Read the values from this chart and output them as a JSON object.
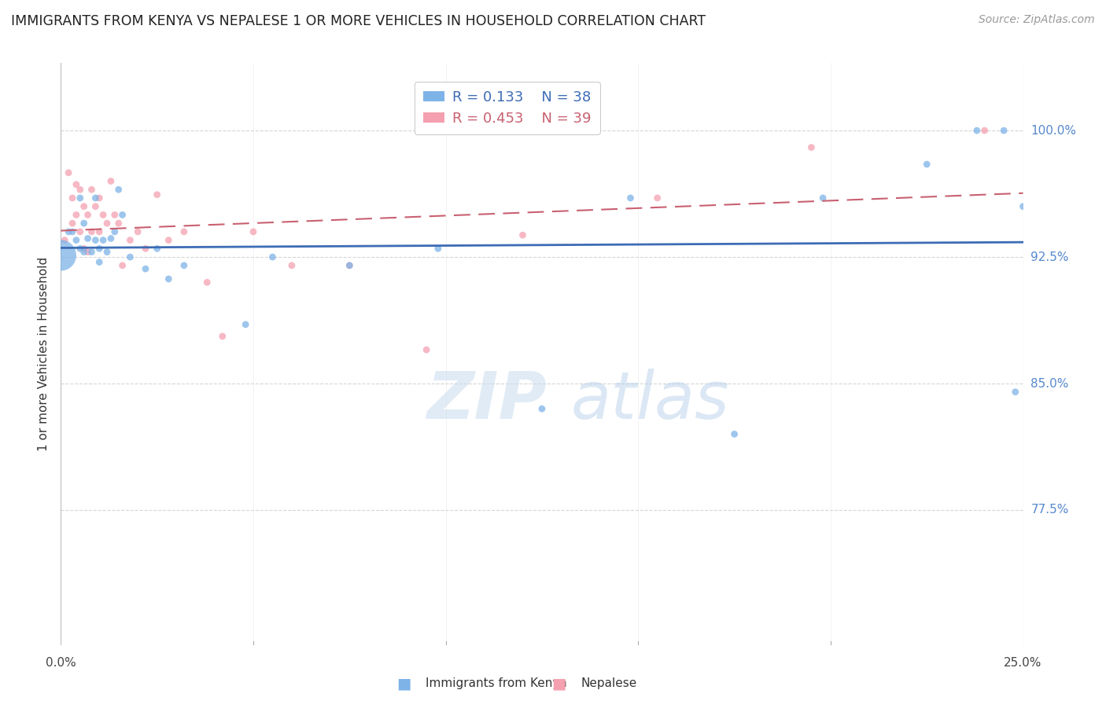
{
  "title": "IMMIGRANTS FROM KENYA VS NEPALESE 1 OR MORE VEHICLES IN HOUSEHOLD CORRELATION CHART",
  "source": "Source: ZipAtlas.com",
  "ylabel": "1 or more Vehicles in Household",
  "xlabel_kenya": "Immigrants from Kenya",
  "xlabel_nepalese": "Nepalese",
  "legend_kenya_R": "0.133",
  "legend_kenya_N": "38",
  "legend_nepal_R": "0.453",
  "legend_nepal_N": "39",
  "kenya_color": "#7EB3E8",
  "nepal_color": "#F4A0B0",
  "trendline_kenya_color": "#3D6CB5",
  "trendline_nepal_color": "#C96070",
  "watermark_zip": "ZIP",
  "watermark_atlas": "atlas",
  "background_color": "#FFFFFF",
  "grid_color": "#CCCCCC",
  "xlim": [
    0.0,
    0.25
  ],
  "ylim": [
    0.695,
    1.04
  ],
  "y_ticks": [
    0.775,
    0.85,
    0.925,
    1.0
  ],
  "y_tick_labels": [
    "77.5%",
    "85.0%",
    "92.5%",
    "100.0%"
  ],
  "x_tick_labels": [
    "0.0%",
    "25.0%"
  ],
  "x_tick_positions": [
    0.0,
    0.25
  ],
  "kenya_x": [
    0.0,
    0.002,
    0.003,
    0.004,
    0.005,
    0.005,
    0.006,
    0.006,
    0.007,
    0.008,
    0.009,
    0.009,
    0.01,
    0.01,
    0.011,
    0.012,
    0.013,
    0.014,
    0.015,
    0.016,
    0.018,
    0.022,
    0.025,
    0.028,
    0.032,
    0.048,
    0.055,
    0.075,
    0.098,
    0.125,
    0.148,
    0.175,
    0.198,
    0.225,
    0.238,
    0.245,
    0.248,
    0.25
  ],
  "kenya_y": [
    0.926,
    0.94,
    0.94,
    0.935,
    0.93,
    0.96,
    0.928,
    0.945,
    0.936,
    0.928,
    0.935,
    0.96,
    0.93,
    0.922,
    0.935,
    0.928,
    0.936,
    0.94,
    0.965,
    0.95,
    0.925,
    0.918,
    0.93,
    0.912,
    0.92,
    0.885,
    0.925,
    0.92,
    0.93,
    0.835,
    0.96,
    0.82,
    0.96,
    0.98,
    1.0,
    1.0,
    0.845,
    0.955
  ],
  "kenya_size": [
    800,
    40,
    40,
    40,
    40,
    40,
    40,
    40,
    40,
    40,
    40,
    40,
    40,
    40,
    40,
    40,
    40,
    40,
    40,
    40,
    40,
    40,
    40,
    40,
    40,
    40,
    40,
    40,
    40,
    40,
    40,
    40,
    40,
    40,
    40,
    40,
    40,
    40
  ],
  "nepal_x": [
    0.001,
    0.002,
    0.003,
    0.003,
    0.004,
    0.004,
    0.005,
    0.005,
    0.006,
    0.006,
    0.007,
    0.007,
    0.008,
    0.008,
    0.009,
    0.01,
    0.01,
    0.011,
    0.012,
    0.013,
    0.014,
    0.015,
    0.016,
    0.018,
    0.02,
    0.022,
    0.025,
    0.028,
    0.032,
    0.038,
    0.042,
    0.05,
    0.06,
    0.075,
    0.095,
    0.12,
    0.155,
    0.195,
    0.24
  ],
  "nepal_y": [
    0.935,
    0.975,
    0.96,
    0.945,
    0.968,
    0.95,
    0.965,
    0.94,
    0.955,
    0.93,
    0.95,
    0.928,
    0.965,
    0.94,
    0.955,
    0.96,
    0.94,
    0.95,
    0.945,
    0.97,
    0.95,
    0.945,
    0.92,
    0.935,
    0.94,
    0.93,
    0.962,
    0.935,
    0.94,
    0.91,
    0.878,
    0.94,
    0.92,
    0.92,
    0.87,
    0.938,
    0.96,
    0.99,
    1.0
  ],
  "nepal_size": [
    40,
    40,
    40,
    40,
    40,
    40,
    40,
    40,
    40,
    40,
    40,
    40,
    40,
    40,
    40,
    40,
    40,
    40,
    40,
    40,
    40,
    40,
    40,
    40,
    40,
    40,
    40,
    40,
    40,
    40,
    40,
    40,
    40,
    40,
    40,
    40,
    40,
    40,
    40
  ]
}
